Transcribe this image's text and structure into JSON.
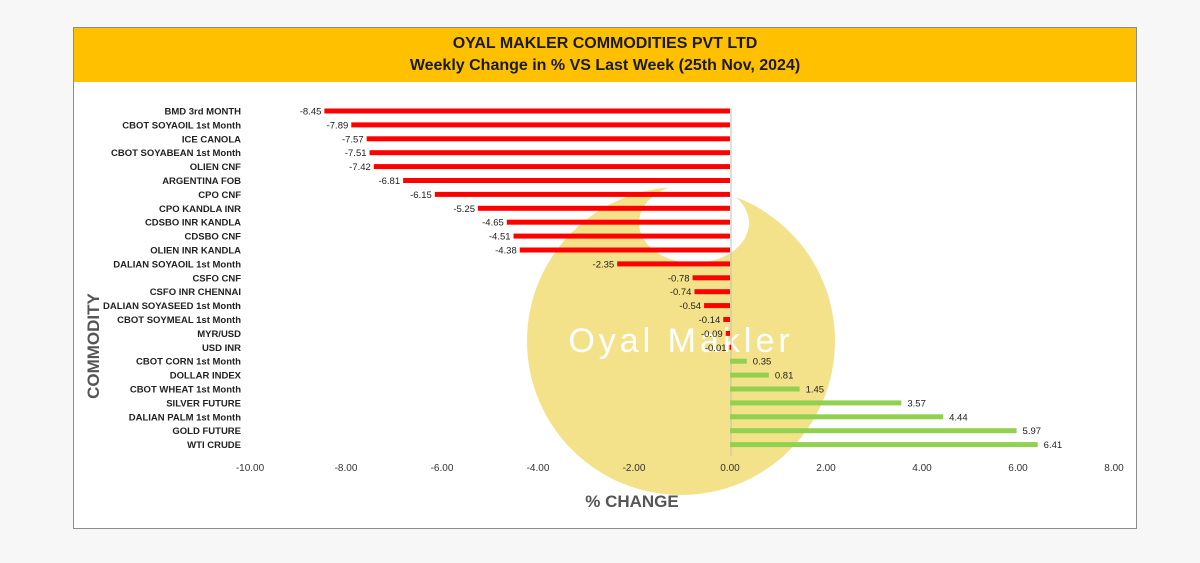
{
  "header": {
    "title": "OYAL MAKLER COMMODITIES PVT LTD",
    "subtitle": "Weekly Change in % VS Last Week (25th Nov, 2024)"
  },
  "watermark": {
    "text": "Oyal Makler"
  },
  "colors": {
    "band": "#ffc000",
    "negative": "#ff0000",
    "positive": "#92d050",
    "watermark": "#f3e28a"
  },
  "chart_data": {
    "type": "bar",
    "orientation": "horizontal",
    "title": "Weekly Change in % VS Last Week (25th Nov, 2024)",
    "xlabel": "% CHANGE",
    "ylabel": "COMMODITY",
    "xlim": [
      -10,
      8
    ],
    "xticks": [
      "-10.00",
      "-8.00",
      "-6.00",
      "-4.00",
      "-2.00",
      "0.00",
      "2.00",
      "4.00",
      "6.00",
      "8.00"
    ],
    "grid": false,
    "legend": "none",
    "categories": [
      "BMD 3rd MONTH",
      "CBOT SOYAOIL 1st Month",
      "ICE CANOLA",
      "CBOT SOYABEAN 1st Month",
      "OLIEN CNF",
      "ARGENTINA FOB",
      "CPO CNF",
      "CPO KANDLA INR",
      "CDSBO INR KANDLA",
      "CDSBO CNF",
      "OLIEN INR KANDLA",
      "DALIAN SOYAOIL 1st Month",
      "CSFO CNF",
      "CSFO INR CHENNAI",
      "DALIAN SOYASEED 1st Month",
      "CBOT SOYMEAL 1st Month",
      "MYR/USD",
      "USD INR",
      "CBOT CORN 1st Month",
      "DOLLAR INDEX",
      "CBOT WHEAT 1st Month",
      "SILVER FUTURE",
      "DALIAN PALM 1st Month",
      "GOLD FUTURE",
      "WTI CRUDE"
    ],
    "values": [
      -8.45,
      -7.89,
      -7.57,
      -7.51,
      -7.42,
      -6.81,
      -6.15,
      -5.25,
      -4.65,
      -4.51,
      -4.38,
      -2.35,
      -0.78,
      -0.74,
      -0.54,
      -0.14,
      -0.09,
      -0.01,
      0.35,
      0.81,
      1.45,
      3.57,
      4.44,
      5.97,
      6.41
    ],
    "value_labels": [
      "-8.45",
      "-7.89",
      "-7.57",
      "-7.51",
      "-7.42",
      "-6.81",
      "-6.15",
      "-5.25",
      "-4.65",
      "-4.51",
      "-4.38",
      "-2.35",
      "-0.78",
      "-0.74",
      "-0.54",
      "-0.14",
      "-0.09",
      "-0.01",
      "0.35",
      "0.81",
      "1.45",
      "3.57",
      "4.44",
      "5.97",
      "6.41"
    ]
  }
}
